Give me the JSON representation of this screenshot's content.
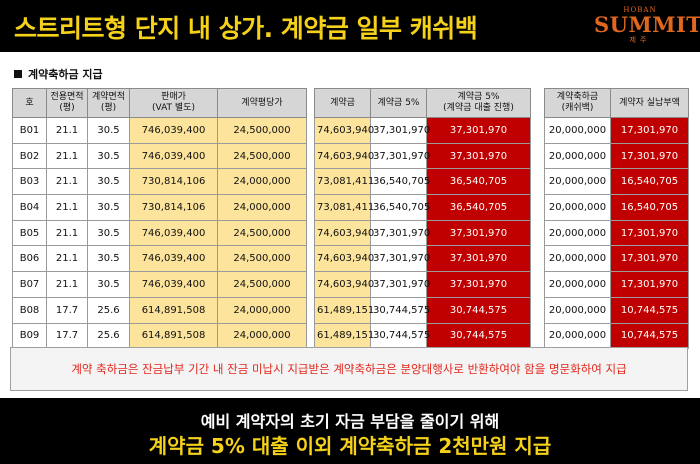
{
  "headline": "스트리트형 단지 내 상가. 계약금 일부 캐쉬백",
  "logo": {
    "small": "HOBAN",
    "main": "SUMMIT",
    "sub": "제주"
  },
  "section_title": "계약축하금 지급",
  "table1": {
    "headers": [
      "호",
      "전용면적\n(평)",
      "계약면적\n(평)",
      "판매가\n(VAT 별도)",
      "계약평당가"
    ],
    "rows": [
      [
        "B01",
        "21.1",
        "30.5",
        "746,039,400",
        "24,500,000"
      ],
      [
        "B02",
        "21.1",
        "30.5",
        "746,039,400",
        "24,500,000"
      ],
      [
        "B03",
        "21.1",
        "30.5",
        "730,814,106",
        "24,000,000"
      ],
      [
        "B04",
        "21.1",
        "30.5",
        "730,814,106",
        "24,000,000"
      ],
      [
        "B05",
        "21.1",
        "30.5",
        "746,039,400",
        "24,500,000"
      ],
      [
        "B06",
        "21.1",
        "30.5",
        "746,039,400",
        "24,500,000"
      ],
      [
        "B07",
        "21.1",
        "30.5",
        "746,039,400",
        "24,500,000"
      ],
      [
        "B08",
        "17.7",
        "25.6",
        "614,891,508",
        "24,000,000"
      ],
      [
        "B09",
        "17.7",
        "25.6",
        "614,891,508",
        "24,000,000"
      ]
    ]
  },
  "table2": {
    "headers": [
      "계약금",
      "계약금 5%",
      "계약금 5%\n(계약금 대출 진행)"
    ],
    "rows": [
      [
        "74,603,940",
        "37,301,970",
        "37,301,970"
      ],
      [
        "74,603,940",
        "37,301,970",
        "37,301,970"
      ],
      [
        "73,081,411",
        "36,540,705",
        "36,540,705"
      ],
      [
        "73,081,411",
        "36,540,705",
        "36,540,705"
      ],
      [
        "74,603,940",
        "37,301,970",
        "37,301,970"
      ],
      [
        "74,603,940",
        "37,301,970",
        "37,301,970"
      ],
      [
        "74,603,940",
        "37,301,970",
        "37,301,970"
      ],
      [
        "61,489,151",
        "30,744,575",
        "30,744,575"
      ],
      [
        "61,489,151",
        "30,744,575",
        "30,744,575"
      ]
    ]
  },
  "table3": {
    "headers": [
      "계약축하금\n(캐쉬백)",
      "계약자 실납부액"
    ],
    "rows": [
      [
        "20,000,000",
        "17,301,970"
      ],
      [
        "20,000,000",
        "17,301,970"
      ],
      [
        "20,000,000",
        "16,540,705"
      ],
      [
        "20,000,000",
        "16,540,705"
      ],
      [
        "20,000,000",
        "17,301,970"
      ],
      [
        "20,000,000",
        "17,301,970"
      ],
      [
        "20,000,000",
        "17,301,970"
      ],
      [
        "20,000,000",
        "10,744,575"
      ],
      [
        "20,000,000",
        "10,744,575"
      ]
    ]
  },
  "notice": "계약 축하금은 잔금납부 기간 내 잔금 미납시 지급받은 계약축하금은 분양대행사로 반환하여야 함을 명문화하여 지급",
  "footer": {
    "line1": "예비 계약자의 초기 자금 부담을 줄이기 위해",
    "line2": "계약금 5% 대출 이외 계약축하금 2천만원 지급"
  },
  "colors": {
    "accent_yellow": "#f5d11a",
    "highlight_red": "#c00000",
    "cell_yellow": "#fde49c",
    "logo_orange": "#e0671e"
  }
}
